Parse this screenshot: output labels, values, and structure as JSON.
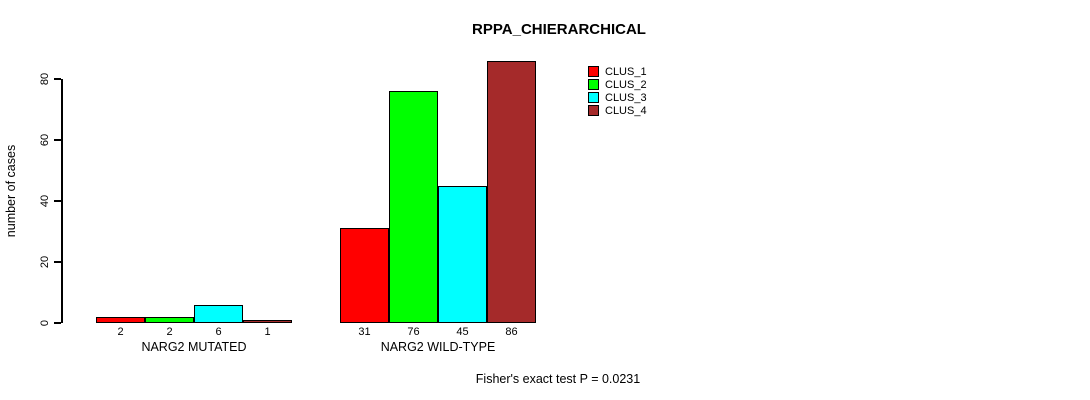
{
  "chart_data": {
    "type": "bar",
    "title": "RPPA_CHIERARCHICAL",
    "xlabel": "",
    "ylabel": "number of cases",
    "categories": [
      "NARG2 MUTATED",
      "NARG2 WILD-TYPE"
    ],
    "series": [
      {
        "name": "CLUS_1",
        "color": "#ff0000",
        "values": [
          2,
          31
        ]
      },
      {
        "name": "CLUS_2",
        "color": "#00ff00",
        "values": [
          2,
          76
        ]
      },
      {
        "name": "CLUS_3",
        "color": "#00ffff",
        "values": [
          6,
          45
        ]
      },
      {
        "name": "CLUS_4",
        "color": "#a52a2a",
        "values": [
          1,
          86
        ]
      }
    ],
    "ylim": [
      0,
      80
    ],
    "yticks": [
      0,
      20,
      40,
      60,
      80
    ],
    "bar_value_labels_shown": true,
    "grid": false,
    "legend_position": "top-right",
    "annotation": "Fisher's exact test P = 0.0231"
  },
  "colors": {
    "background": "#ffffff",
    "axis": "#000000",
    "text": "#000000"
  }
}
